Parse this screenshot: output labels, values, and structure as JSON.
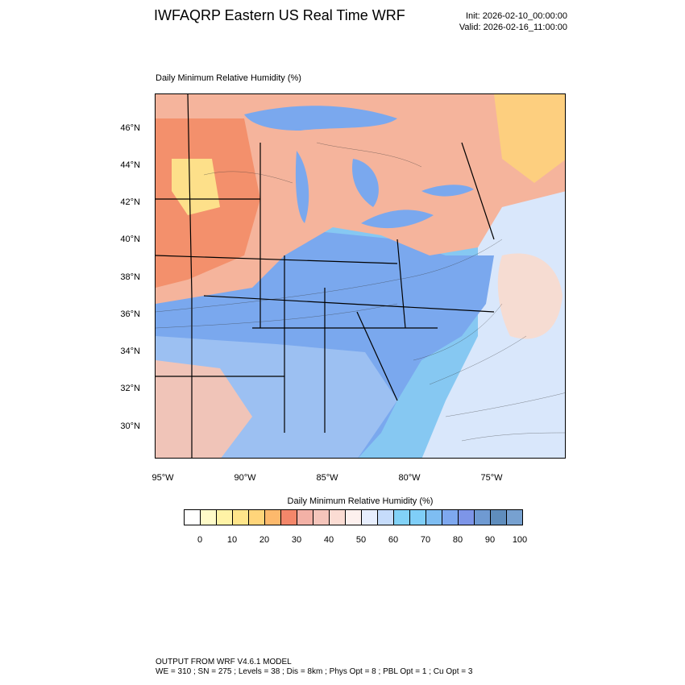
{
  "header": {
    "title": "IWFAQRP Eastern US Real Time WRF",
    "init": "Init: 2026-02-10_00:00:00",
    "valid": "Valid: 2026-02-16_11:00:00"
  },
  "plot": {
    "field_label": "Daily Minimum Relative Humidity   (%)",
    "lat_labels": [
      "46°N",
      "44°N",
      "42°N",
      "40°N",
      "38°N",
      "36°N",
      "34°N",
      "32°N",
      "30°N"
    ],
    "lon_labels": [
      "95°W",
      "90°W",
      "85°W",
      "80°W",
      "75°W"
    ]
  },
  "colorbar": {
    "title": "Daily Minimum Relative Humidity  (%)",
    "colors": [
      "#ffffff",
      "#fffbc8",
      "#fff3a6",
      "#ffe58a",
      "#ffd57a",
      "#fdb96c",
      "#f4876a",
      "#f3b1a6",
      "#f5c5bb",
      "#fbdcd3",
      "#fdf0ee",
      "#e7eefe",
      "#c6dcfb",
      "#82d2f7",
      "#7fcef8",
      "#7ebdf2",
      "#7ea8ef",
      "#7d95e8",
      "#6f9ad2",
      "#5f8dbd",
      "#77a1d0"
    ],
    "tick_labels": [
      "0",
      "10",
      "20",
      "30",
      "40",
      "50",
      "60",
      "70",
      "80",
      "90",
      "100"
    ]
  },
  "footer": {
    "line1": "OUTPUT FROM WRF V4.6.1 MODEL",
    "line2": "WE = 310 ; SN = 275 ; Levels = 38 ; Dis = 8km ; Phys Opt = 8 ; PBL Opt = 1 ; Cu Opt = 3"
  }
}
